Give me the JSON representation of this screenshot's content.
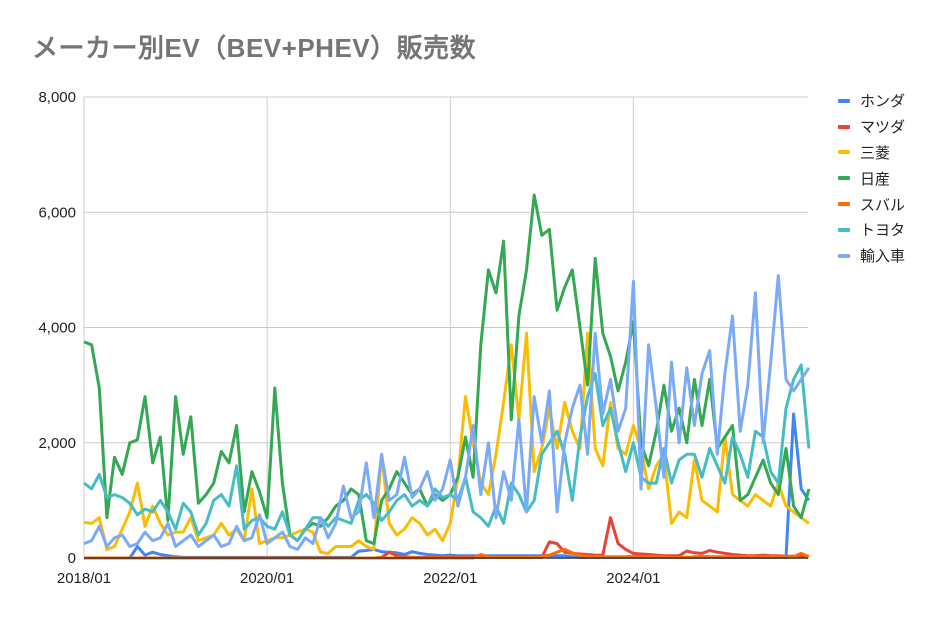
{
  "title": "メーカー別EV（BEV+PHEV）販売数",
  "chart_data": {
    "type": "line",
    "title": "メーカー別EV（BEV+PHEV）販売数",
    "xlabel": "",
    "ylabel": "",
    "ylim": [
      0,
      8000
    ],
    "y_ticks": [
      "0",
      "2,000",
      "4,000",
      "6,000",
      "8,000"
    ],
    "y_tick_values": [
      0,
      2000,
      4000,
      6000,
      8000
    ],
    "x_ticks": [
      "2018/01",
      "2020/01",
      "2022/01",
      "2024/01"
    ],
    "x_tick_index": [
      0,
      24,
      48,
      72
    ],
    "x_start": "2018/01",
    "x_end": "2025/12",
    "grid": true,
    "legend_position": "right",
    "series": [
      {
        "name": "ホンダ",
        "color": "#4285f4",
        "values": [
          0,
          0,
          0,
          0,
          0,
          0,
          0,
          200,
          50,
          100,
          60,
          40,
          20,
          10,
          10,
          10,
          10,
          10,
          10,
          10,
          10,
          10,
          10,
          10,
          10,
          10,
          10,
          10,
          10,
          10,
          10,
          10,
          10,
          10,
          10,
          10,
          120,
          130,
          150,
          110,
          100,
          90,
          60,
          110,
          80,
          60,
          50,
          40,
          50,
          40,
          40,
          40,
          40,
          40,
          40,
          40,
          40,
          40,
          40,
          40,
          40,
          40,
          40,
          40,
          20,
          10,
          10,
          10,
          10,
          10,
          10,
          10,
          10,
          10,
          10,
          10,
          10,
          10,
          10,
          10,
          10,
          10,
          10,
          10,
          10,
          10,
          10,
          10,
          10,
          10,
          10,
          10,
          10,
          2500,
          1200,
          1000
        ]
      },
      {
        "name": "マツダ",
        "color": "#ea4335",
        "values": [
          0,
          0,
          0,
          0,
          0,
          0,
          0,
          0,
          0,
          0,
          0,
          0,
          0,
          0,
          0,
          0,
          0,
          0,
          0,
          0,
          0,
          0,
          0,
          0,
          0,
          0,
          0,
          0,
          0,
          0,
          0,
          0,
          0,
          0,
          0,
          0,
          0,
          0,
          0,
          10,
          100,
          40,
          20,
          10,
          10,
          10,
          10,
          10,
          10,
          10,
          10,
          10,
          10,
          10,
          10,
          10,
          10,
          10,
          10,
          10,
          10,
          280,
          250,
          100,
          80,
          70,
          60,
          50,
          50,
          700,
          250,
          150,
          80,
          70,
          60,
          50,
          40,
          40,
          40,
          120,
          90,
          80,
          130,
          100,
          80,
          60,
          50,
          40,
          40,
          50,
          40,
          40,
          30,
          30,
          30,
          30
        ]
      },
      {
        "name": "三菱",
        "color": "#fbbc04",
        "values": [
          620,
          600,
          700,
          150,
          200,
          500,
          800,
          1300,
          550,
          900,
          600,
          400,
          450,
          450,
          700,
          300,
          350,
          400,
          600,
          400,
          500,
          300,
          1200,
          250,
          300,
          350,
          350,
          400,
          450,
          500,
          450,
          100,
          80,
          200,
          200,
          200,
          300,
          200,
          150,
          1800,
          600,
          400,
          500,
          700,
          600,
          400,
          500,
          300,
          600,
          1400,
          2800,
          2000,
          1300,
          1100,
          1800,
          2700,
          3700,
          2400,
          3900,
          1500,
          1900,
          2600,
          1900,
          2700,
          2200,
          1900,
          3900,
          1900,
          1600,
          2700,
          1900,
          1800,
          2300,
          1900,
          1200,
          1600,
          1800,
          600,
          800,
          700,
          1700,
          1000,
          900,
          800,
          2100,
          1100,
          1000,
          900,
          1100,
          1000,
          900,
          1300,
          900,
          800,
          700,
          600
        ]
      },
      {
        "name": "日産",
        "color": "#34a853",
        "values": [
          3750,
          3700,
          2950,
          700,
          1750,
          1450,
          2000,
          2050,
          2800,
          1650,
          2100,
          650,
          2800,
          1800,
          2450,
          950,
          1100,
          1300,
          1850,
          1650,
          2300,
          800,
          1500,
          1150,
          700,
          2950,
          1300,
          400,
          300,
          500,
          600,
          550,
          700,
          900,
          1000,
          1200,
          1100,
          300,
          250,
          1000,
          1200,
          1500,
          1300,
          1100,
          1200,
          900,
          1100,
          1000,
          1100,
          1400,
          2100,
          1400,
          3700,
          5000,
          4600,
          5500,
          2400,
          4200,
          5000,
          6300,
          5600,
          5700,
          4300,
          4700,
          5000,
          4000,
          3000,
          5200,
          3900,
          3500,
          2900,
          3400,
          4100,
          2000,
          1600,
          2200,
          3000,
          2200,
          2600,
          2000,
          3100,
          2300,
          3100,
          1900,
          2100,
          2300,
          1000,
          1100,
          1400,
          1700,
          1300,
          1100,
          1900,
          900,
          700,
          1200
        ]
      },
      {
        "name": "スバル",
        "color": "#ff6d01",
        "values": [
          0,
          0,
          0,
          0,
          0,
          0,
          0,
          0,
          0,
          0,
          0,
          0,
          0,
          0,
          0,
          0,
          0,
          0,
          0,
          0,
          0,
          0,
          0,
          0,
          0,
          0,
          0,
          0,
          0,
          0,
          0,
          0,
          0,
          0,
          0,
          0,
          0,
          0,
          0,
          0,
          0,
          0,
          0,
          0,
          0,
          0,
          0,
          0,
          0,
          0,
          0,
          0,
          60,
          20,
          10,
          10,
          10,
          10,
          10,
          10,
          30,
          50,
          100,
          150,
          90,
          40,
          30,
          30,
          20,
          20,
          20,
          20,
          30,
          20,
          20,
          20,
          20,
          10,
          10,
          10,
          20,
          30,
          20,
          20,
          20,
          20,
          20,
          30,
          20,
          20,
          20,
          20,
          20,
          20,
          80,
          20
        ]
      },
      {
        "name": "トヨタ",
        "color": "#46bdc6",
        "values": [
          1300,
          1200,
          1450,
          1050,
          1100,
          1050,
          950,
          750,
          850,
          800,
          1000,
          800,
          500,
          950,
          800,
          400,
          600,
          1000,
          1100,
          900,
          1600,
          500,
          650,
          700,
          550,
          500,
          800,
          400,
          300,
          500,
          700,
          700,
          550,
          700,
          650,
          600,
          1000,
          1100,
          950,
          650,
          800,
          1000,
          1100,
          900,
          1000,
          900,
          1200,
          1050,
          1100,
          1000,
          1400,
          800,
          700,
          550,
          900,
          600,
          1300,
          1100,
          800,
          1000,
          1800,
          2000,
          2200,
          1800,
          1000,
          2100,
          2800,
          3200,
          2300,
          2600,
          2000,
          1500,
          2000,
          1400,
          1300,
          1300,
          1900,
          1300,
          1700,
          1800,
          1800,
          1400,
          1900,
          1600,
          1300,
          2100,
          1800,
          1400,
          2200,
          2100,
          1500,
          1300,
          2600,
          3100,
          3350,
          1900
        ]
      },
      {
        "name": "輸入車",
        "color": "#7baaf7",
        "values": [
          250,
          300,
          550,
          200,
          350,
          400,
          200,
          250,
          450,
          300,
          350,
          600,
          200,
          300,
          400,
          200,
          300,
          400,
          200,
          250,
          550,
          300,
          350,
          750,
          250,
          350,
          450,
          200,
          150,
          350,
          250,
          700,
          350,
          600,
          1250,
          700,
          800,
          1650,
          700,
          1800,
          1000,
          1100,
          1750,
          1050,
          1200,
          1500,
          1000,
          1200,
          1700,
          900,
          1400,
          2300,
          1100,
          2000,
          700,
          1500,
          1000,
          2400,
          800,
          2800,
          2000,
          2900,
          800,
          2000,
          2600,
          3000,
          1800,
          3900,
          2500,
          3100,
          2200,
          2600,
          4800,
          1200,
          3700,
          2600,
          1400,
          3400,
          2000,
          3300,
          2300,
          3200,
          3600,
          1800,
          3200,
          4200,
          2200,
          3000,
          4600,
          2000,
          3400,
          4900,
          3100,
          2900,
          3100,
          3300
        ]
      }
    ]
  },
  "legend": [
    {
      "label": "ホンダ",
      "color": "#4285f4"
    },
    {
      "label": "マツダ",
      "color": "#ea4335"
    },
    {
      "label": "三菱",
      "color": "#fbbc04"
    },
    {
      "label": "日産",
      "color": "#34a853"
    },
    {
      "label": "スバル",
      "color": "#ff6d01"
    },
    {
      "label": "トヨタ",
      "color": "#46bdc6"
    },
    {
      "label": "輸入車",
      "color": "#7baaf7"
    }
  ]
}
